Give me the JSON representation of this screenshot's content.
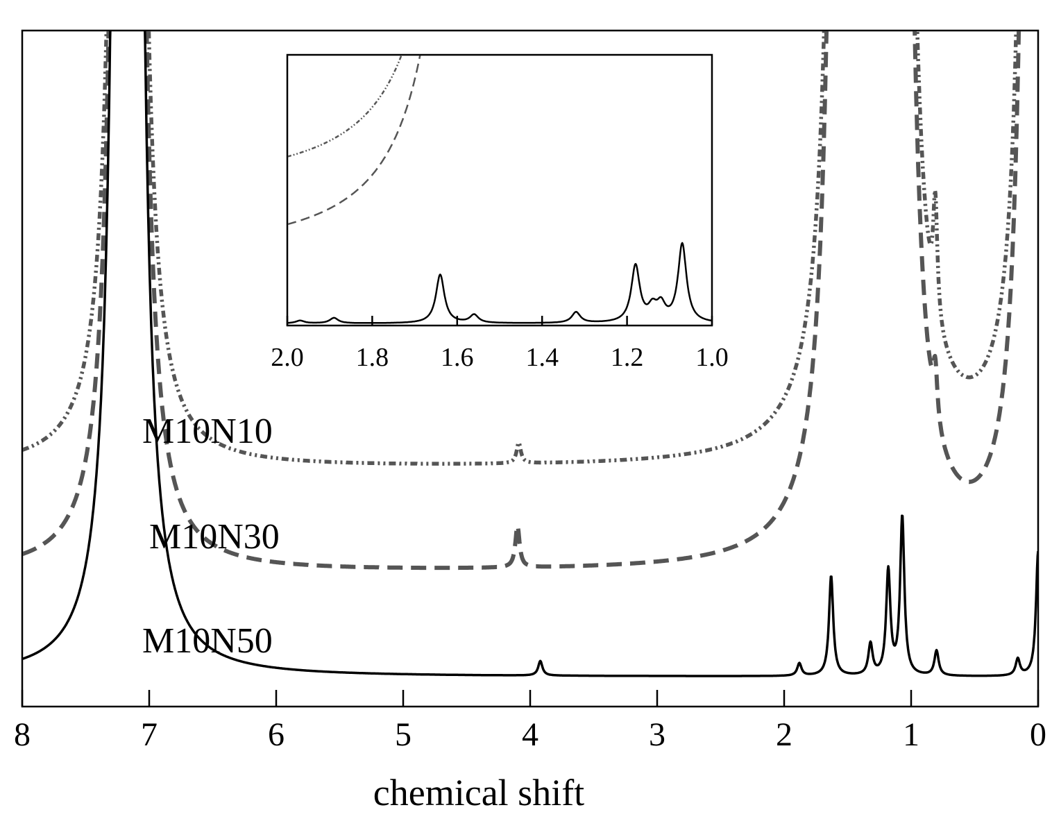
{
  "chart_data": [
    {
      "type": "line",
      "title": "",
      "xlabel": "chemical shift",
      "ylabel": "",
      "xlim": [
        8,
        0
      ],
      "x_reversed": true,
      "grid": false,
      "xticks": [
        "8",
        "7",
        "6",
        "5",
        "4",
        "3",
        "2",
        "1",
        "0"
      ],
      "series": [
        {
          "name": "M10N10",
          "style": "dash-dot-dot",
          "color": "#555555",
          "baseline": 1.0,
          "peaks": [
            [
              7.17,
              300
            ],
            [
              4.09,
              0.1
            ],
            [
              1.51,
              300
            ],
            [
              1.25,
              0.35
            ],
            [
              1.13,
              300
            ],
            [
              0.81,
              0.55
            ],
            [
              0.15,
              0.15
            ],
            [
              0.0,
              300
            ]
          ]
        },
        {
          "name": "M10N30",
          "style": "dashed",
          "color": "#555555",
          "baseline": 0.5,
          "peaks": [
            [
              7.17,
              300
            ],
            [
              4.1,
              0.2
            ],
            [
              1.51,
              300
            ],
            [
              1.48,
              0.12
            ],
            [
              1.19,
              0.35
            ],
            [
              1.13,
              300
            ],
            [
              0.81,
              0.25
            ],
            [
              0.0,
              300
            ]
          ]
        },
        {
          "name": "M10N50",
          "style": "solid",
          "color": "#000000",
          "baseline": 0.0,
          "peaks": [
            [
              7.17,
              300
            ],
            [
              3.92,
              0.07
            ],
            [
              1.88,
              0.06
            ],
            [
              1.63,
              0.48
            ],
            [
              1.32,
              0.15
            ],
            [
              1.18,
              0.5
            ],
            [
              1.07,
              0.76
            ],
            [
              0.8,
              0.12
            ],
            [
              0.16,
              0.08
            ],
            [
              0.0,
              0.6
            ]
          ]
        }
      ]
    },
    {
      "type": "line",
      "title": "",
      "xlabel": "",
      "ylabel": "",
      "xlim": [
        2.0,
        1.0
      ],
      "x_reversed": true,
      "grid": false,
      "xticks": [
        "2.0",
        "1.8",
        "1.6",
        "1.4",
        "1.2",
        "1.0"
      ],
      "series": [
        {
          "name": "M10N10",
          "style": "dash-dot-dot",
          "color": "#555555",
          "baseline": 0.5,
          "peaks": [
            [
              1.51,
              300
            ],
            [
              1.18,
              0.6
            ],
            [
              1.13,
              300
            ]
          ]
        },
        {
          "name": "M10N30",
          "style": "dashed",
          "color": "#555555",
          "baseline": 0.25,
          "peaks": [
            [
              1.51,
              300
            ],
            [
              1.58,
              0.04
            ],
            [
              1.19,
              0.15
            ],
            [
              1.13,
              300
            ]
          ]
        },
        {
          "name": "M10N50",
          "style": "solid",
          "color": "#000000",
          "baseline": 0.0,
          "peaks": [
            [
              1.97,
              0.01
            ],
            [
              1.89,
              0.02
            ],
            [
              1.64,
              0.18
            ],
            [
              1.56,
              0.03
            ],
            [
              1.32,
              0.04
            ],
            [
              1.18,
              0.21
            ],
            [
              1.14,
              0.05
            ],
            [
              1.12,
              0.06
            ],
            [
              1.07,
              0.29
            ]
          ]
        }
      ]
    }
  ]
}
